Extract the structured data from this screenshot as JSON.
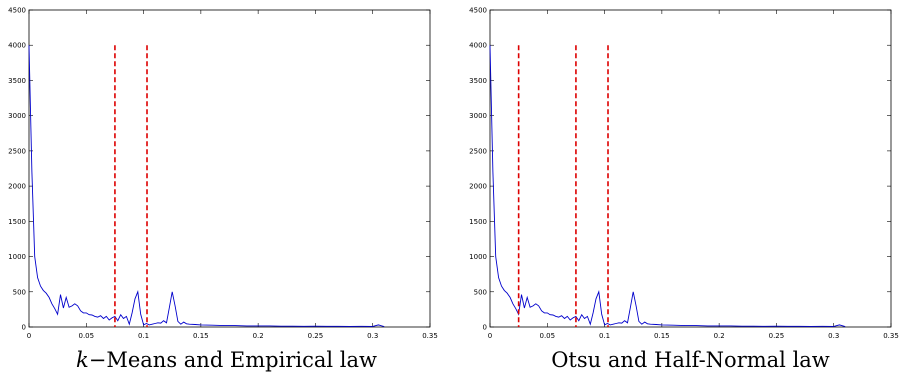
{
  "chart_data": [
    {
      "type": "line",
      "caption": {
        "italic": "k",
        "rest": "−Means and Empirical law"
      },
      "xlim": [
        0,
        0.35
      ],
      "ylim": [
        0,
        4500
      ],
      "xticks": [
        0,
        0.05,
        0.1,
        0.15,
        0.2,
        0.25,
        0.3,
        0.35
      ],
      "xticklabels": [
        "0",
        "0.05",
        "0.1",
        "0.15",
        "0.2",
        "0.25",
        "0.3",
        "0.35"
      ],
      "yticks": [
        0,
        500,
        1000,
        1500,
        2000,
        2500,
        3000,
        3500,
        4000,
        4500
      ],
      "yticklabels": [
        "0",
        "500",
        "1000",
        "1500",
        "2000",
        "2500",
        "3000",
        "3500",
        "4000",
        "4500"
      ],
      "series_color": "#0000cc",
      "threshold_color": "#dd0000",
      "x": [
        0,
        0.0025,
        0.005,
        0.0075,
        0.01,
        0.0125,
        0.015,
        0.0175,
        0.02,
        0.0225,
        0.025,
        0.0275,
        0.03,
        0.0325,
        0.035,
        0.0375,
        0.04,
        0.0425,
        0.045,
        0.0475,
        0.05,
        0.0525,
        0.055,
        0.0575,
        0.06,
        0.0625,
        0.065,
        0.0675,
        0.07,
        0.0725,
        0.075,
        0.0775,
        0.08,
        0.0825,
        0.085,
        0.0875,
        0.09,
        0.0925,
        0.095,
        0.0975,
        0.1,
        0.1025,
        0.105,
        0.1075,
        0.11,
        0.1125,
        0.115,
        0.1175,
        0.12,
        0.1225,
        0.125,
        0.1275,
        0.13,
        0.1325,
        0.135,
        0.1375,
        0.14,
        0.145,
        0.15,
        0.16,
        0.17,
        0.18,
        0.19,
        0.2,
        0.21,
        0.22,
        0.23,
        0.24,
        0.25,
        0.26,
        0.27,
        0.28,
        0.29,
        0.3,
        0.305,
        0.31
      ],
      "y": [
        4000,
        2200,
        1000,
        700,
        580,
        520,
        480,
        420,
        330,
        260,
        180,
        460,
        270,
        420,
        280,
        300,
        330,
        300,
        230,
        200,
        200,
        175,
        170,
        150,
        140,
        160,
        120,
        150,
        100,
        130,
        150,
        90,
        175,
        120,
        150,
        40,
        200,
        400,
        500,
        180,
        30,
        50,
        30,
        40,
        50,
        60,
        55,
        90,
        60,
        280,
        500,
        300,
        80,
        40,
        70,
        45,
        40,
        35,
        30,
        25,
        20,
        20,
        15,
        15,
        15,
        12,
        12,
        10,
        12,
        10,
        10,
        8,
        10,
        8,
        30,
        5
      ],
      "thresholds": [
        0.075,
        0.103
      ],
      "threshold_top": 4000
    },
    {
      "type": "line",
      "caption": {
        "italic": "",
        "rest": "Otsu and Half-Normal law"
      },
      "xlim": [
        0,
        0.35
      ],
      "ylim": [
        0,
        4500
      ],
      "xticks": [
        0,
        0.05,
        0.1,
        0.15,
        0.2,
        0.25,
        0.3,
        0.35
      ],
      "xticklabels": [
        "0",
        "0.05",
        "0.1",
        "0.15",
        "0.2",
        "0.25",
        "0.3",
        "0.35"
      ],
      "yticks": [
        0,
        500,
        1000,
        1500,
        2000,
        2500,
        3000,
        3500,
        4000,
        4500
      ],
      "yticklabels": [
        "0",
        "500",
        "1000",
        "1500",
        "2000",
        "2500",
        "3000",
        "3500",
        "4000",
        "4500"
      ],
      "series_color": "#0000cc",
      "threshold_color": "#dd0000",
      "x": [
        0,
        0.0025,
        0.005,
        0.0075,
        0.01,
        0.0125,
        0.015,
        0.0175,
        0.02,
        0.0225,
        0.025,
        0.0275,
        0.03,
        0.0325,
        0.035,
        0.0375,
        0.04,
        0.0425,
        0.045,
        0.0475,
        0.05,
        0.0525,
        0.055,
        0.0575,
        0.06,
        0.0625,
        0.065,
        0.0675,
        0.07,
        0.0725,
        0.075,
        0.0775,
        0.08,
        0.0825,
        0.085,
        0.0875,
        0.09,
        0.0925,
        0.095,
        0.0975,
        0.1,
        0.1025,
        0.105,
        0.1075,
        0.11,
        0.1125,
        0.115,
        0.1175,
        0.12,
        0.1225,
        0.125,
        0.1275,
        0.13,
        0.1325,
        0.135,
        0.1375,
        0.14,
        0.145,
        0.15,
        0.16,
        0.17,
        0.18,
        0.19,
        0.2,
        0.21,
        0.22,
        0.23,
        0.24,
        0.25,
        0.26,
        0.27,
        0.28,
        0.29,
        0.3,
        0.305,
        0.31
      ],
      "y": [
        4000,
        2200,
        1000,
        700,
        580,
        520,
        480,
        420,
        330,
        260,
        180,
        460,
        270,
        420,
        280,
        300,
        330,
        300,
        230,
        200,
        200,
        175,
        170,
        150,
        140,
        160,
        120,
        150,
        100,
        130,
        150,
        90,
        175,
        120,
        150,
        40,
        200,
        400,
        500,
        180,
        30,
        50,
        30,
        40,
        50,
        60,
        55,
        90,
        60,
        280,
        500,
        300,
        80,
        40,
        70,
        45,
        40,
        35,
        30,
        25,
        20,
        20,
        15,
        15,
        15,
        12,
        12,
        10,
        12,
        10,
        10,
        8,
        10,
        8,
        30,
        5
      ],
      "thresholds": [
        0.025,
        0.075,
        0.103
      ],
      "threshold_top": 4000
    }
  ]
}
